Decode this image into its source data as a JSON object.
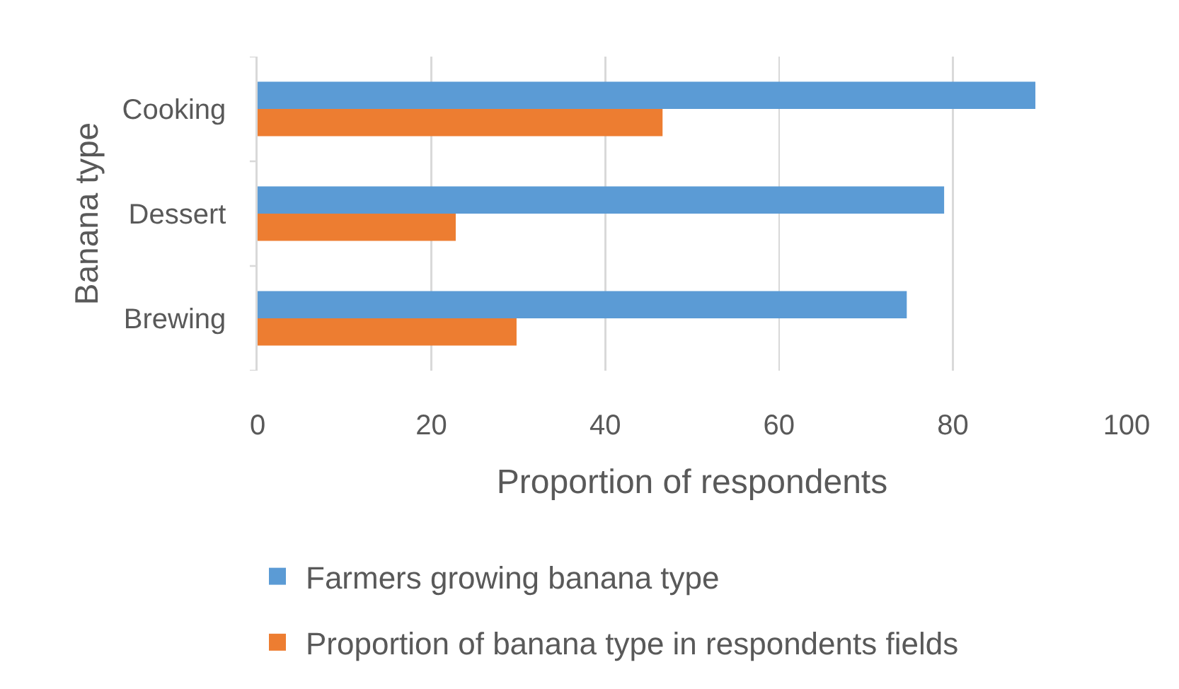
{
  "chart_data": {
    "type": "bar",
    "orientation": "horizontal",
    "xlabel": "Proportion of respondents",
    "ylabel": "Banana type",
    "categories": [
      "Cooking",
      "Dessert",
      "Brewing"
    ],
    "series": [
      {
        "name": "Farmers growing banana type",
        "color": "#5b9bd5",
        "values": [
          89.5,
          79,
          74.7
        ]
      },
      {
        "name": "Proportion of banana type in respondents fields",
        "color": "#ed7d31",
        "values": [
          46.6,
          22.8,
          29.8
        ]
      }
    ],
    "xlim": [
      0,
      100
    ],
    "xticks": [
      0,
      20,
      40,
      60,
      80,
      100
    ],
    "grid": "x",
    "legend": "bottom"
  }
}
